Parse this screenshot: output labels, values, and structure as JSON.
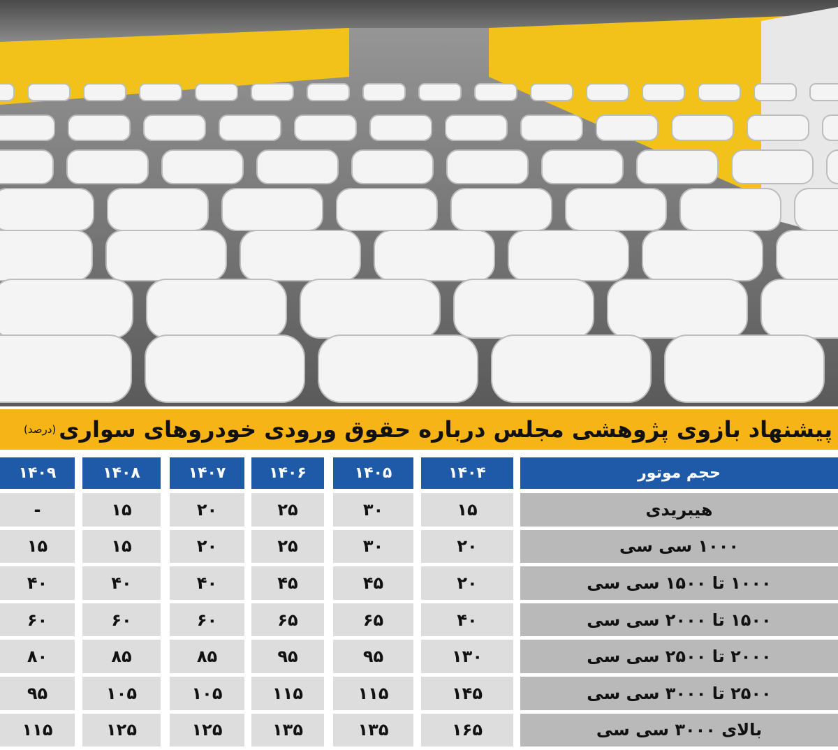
{
  "title": "پیشنهاد بازوی پژوهشی مجلس درباره حقوق ورودی خودروهای سواری",
  "unit": "(درصد)",
  "table": {
    "header": [
      "حجم موتور",
      "۱۴۰۴",
      "۱۴۰۵",
      "۱۴۰۶",
      "۱۴۰۷",
      "۱۴۰۸",
      "۱۴۰۹"
    ],
    "rows": [
      [
        "هیبریدی",
        "۱۵",
        "۳۰",
        "۲۵",
        "۲۰",
        "۱۵",
        "-"
      ],
      [
        "۱۰۰۰ سی سی",
        "۲۰",
        "۳۰",
        "۲۵",
        "۲۰",
        "۱۵",
        "۱۵"
      ],
      [
        "۱۰۰۰ تا ۱۵۰۰ سی سی",
        "۲۰",
        "۴۵",
        "۴۵",
        "۴۰",
        "۴۰",
        "۴۰"
      ],
      [
        "۱۵۰۰ تا ۲۰۰۰ سی سی",
        "۴۰",
        "۶۵",
        "۶۵",
        "۶۰",
        "۶۰",
        "۶۰"
      ],
      [
        "۲۰۰۰ تا ۲۵۰۰ سی سی",
        "۱۳۰",
        "۹۵",
        "۹۵",
        "۸۵",
        "۸۵",
        "۸۰"
      ],
      [
        "۲۵۰۰ تا ۳۰۰۰ سی سی",
        "۱۴۵",
        "۱۱۵",
        "۱۱۵",
        "۱۰۵",
        "۱۰۵",
        "۹۵"
      ],
      [
        "بالای ۳۰۰۰ سی سی",
        "۱۶۵",
        "۱۳۵",
        "۱۳۵",
        "۱۲۵",
        "۱۲۵",
        "۱۱۵"
      ]
    ]
  }
}
